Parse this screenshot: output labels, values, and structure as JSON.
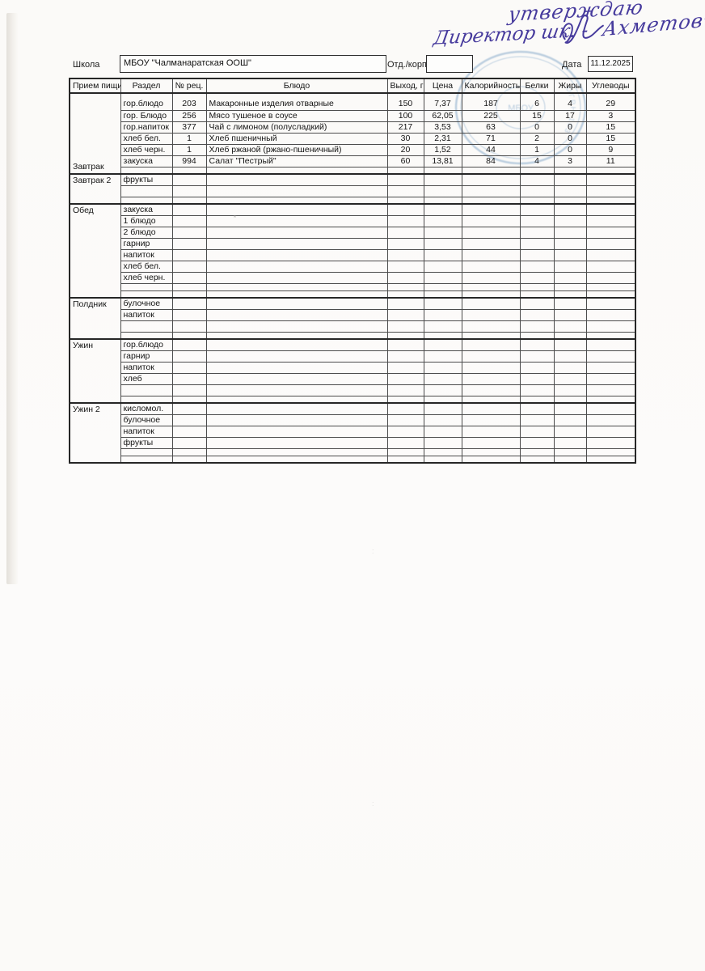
{
  "approval": {
    "line1": "утверждаю",
    "line2": "Директор шк. -",
    "signature_name": "Ахметовъ"
  },
  "stamp": {
    "rim_text": "ОГРН 103",
    "center_text": "МБОУ",
    "color": "#7ea6cc"
  },
  "form": {
    "school_label": "Школа",
    "school_value": "МБОУ \"Чалманаратская ООШ\"",
    "dept_label": "Отд./корп",
    "dept_value": "",
    "date_label": "Дата",
    "date_value": "11.12.2025"
  },
  "table": {
    "headers": [
      "Прием пищи",
      "Раздел",
      "№ рец.",
      "Блюдо",
      "Выход, г",
      "Цена",
      "Калорийность",
      "Белки",
      "Жиры",
      "Углеводы"
    ],
    "sections": [
      {
        "meal": "Завтрак",
        "rows": [
          {
            "h": "t",
            "razdel": "гор.блюдо",
            "num": "203",
            "dish": "Макаронные изделия отварные",
            "out": "150",
            "price": "7,37",
            "kcal": "187",
            "prot": "6",
            "fat": "4",
            "carb": "29"
          },
          {
            "h": "n",
            "razdel": "гор. Блюдо",
            "num": "256",
            "dish": "Мясо тушеное в соусе",
            "out": "100",
            "price": "62,05",
            "kcal": "225",
            "prot": "15",
            "fat": "17",
            "carb": "3"
          },
          {
            "h": "n",
            "razdel": "гор.напиток",
            "num": "377",
            "dish": "Чай с лимоном (полусладкий)",
            "out": "217",
            "price": "3,53",
            "kcal": "63",
            "prot": "0",
            "fat": "0",
            "carb": "15"
          },
          {
            "h": "n",
            "razdel": "хлеб бел.",
            "num": "1",
            "dish": "Хлеб пшеничный",
            "out": "30",
            "price": "2,31",
            "kcal": "71",
            "prot": "2",
            "fat": "0",
            "carb": "15"
          },
          {
            "h": "n",
            "razdel": "хлеб черн.",
            "num": "1",
            "dish": "Хлеб ржаной (ржано-пшеничный)",
            "out": "20",
            "price": "1,52",
            "kcal": "44",
            "prot": "1",
            "fat": "0",
            "carb": "9"
          },
          {
            "h": "n",
            "razdel": "закуска",
            "num": "994",
            "dish": "Салат \"Пестрый\"",
            "out": "60",
            "price": "13,81",
            "kcal": "84",
            "prot": "4",
            "fat": "3",
            "carb": "11"
          },
          {
            "h": "s"
          }
        ]
      },
      {
        "meal": "Завтрак 2",
        "rows": [
          {
            "h": "n",
            "razdel": "фрукты"
          },
          {
            "h": "n"
          },
          {
            "h": "s"
          }
        ]
      },
      {
        "meal": "Обед",
        "rows": [
          {
            "h": "n",
            "razdel": "закуска"
          },
          {
            "h": "n",
            "razdel": "1 блюдо"
          },
          {
            "h": "n",
            "razdel": "2 блюдо"
          },
          {
            "h": "n",
            "razdel": "гарнир"
          },
          {
            "h": "n",
            "razdel": "напиток"
          },
          {
            "h": "n",
            "razdel": "хлеб бел."
          },
          {
            "h": "n",
            "razdel": "хлеб черн."
          },
          {
            "h": "s"
          },
          {
            "h": "s"
          }
        ]
      },
      {
        "meal": "Полдник",
        "rows": [
          {
            "h": "n",
            "razdel": "булочное"
          },
          {
            "h": "n",
            "razdel": "напиток"
          },
          {
            "h": "n"
          },
          {
            "h": "s"
          }
        ]
      },
      {
        "meal": "Ужин",
        "rows": [
          {
            "h": "n",
            "razdel": "гор.блюдо"
          },
          {
            "h": "n",
            "razdel": "гарнир"
          },
          {
            "h": "n",
            "razdel": "напиток"
          },
          {
            "h": "n",
            "razdel": "хлеб"
          },
          {
            "h": "n"
          },
          {
            "h": "s"
          }
        ]
      },
      {
        "meal": "Ужин 2",
        "rows": [
          {
            "h": "n",
            "razdel": "кисломол."
          },
          {
            "h": "n",
            "razdel": "булочное"
          },
          {
            "h": "n",
            "razdel": "напиток"
          },
          {
            "h": "n",
            "razdel": "фрукты"
          },
          {
            "h": "s"
          },
          {
            "h": "s"
          }
        ]
      }
    ]
  },
  "specks": {
    "asterisk": "٭",
    "colon": ":"
  }
}
